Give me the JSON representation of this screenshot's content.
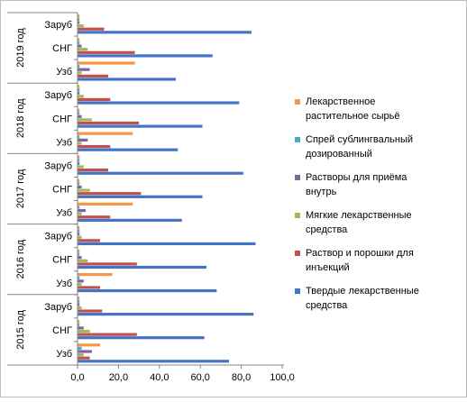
{
  "chart_data": {
    "type": "bar",
    "orientation": "horizontal",
    "groups": [
      {
        "label": "2015 год",
        "categories": [
          "Узб",
          "СНГ",
          "Заруб"
        ]
      },
      {
        "label": "2016 год",
        "categories": [
          "Узб",
          "СНГ",
          "Заруб"
        ]
      },
      {
        "label": "2017 год",
        "categories": [
          "Узб",
          "СНГ",
          "Заруб"
        ]
      },
      {
        "label": "2018 год",
        "categories": [
          "Узб",
          "СНГ",
          "Заруб"
        ]
      },
      {
        "label": "2019 год",
        "categories": [
          "Узб",
          "СНГ",
          "Заруб"
        ]
      }
    ],
    "series": [
      {
        "name": "Твердые лекарственные средства",
        "color": "#4472C4",
        "values": [
          74,
          62,
          86,
          68,
          63,
          87,
          51,
          61,
          81,
          49,
          61,
          79,
          48,
          66,
          85
        ]
      },
      {
        "name": "Раствор и порошки для инъекций",
        "color": "#C0504D",
        "values": [
          6,
          29,
          12,
          11,
          29,
          11,
          16,
          31,
          15,
          16,
          30,
          16,
          15,
          28,
          13
        ]
      },
      {
        "name": "Мягкие лекарственные средства",
        "color": "#9BBB59",
        "values": [
          3,
          6,
          2,
          2,
          5,
          2,
          2,
          6,
          3,
          2,
          7,
          3,
          2,
          5,
          3
        ]
      },
      {
        "name": "Растворы для приёма внутрь",
        "color": "#8064A2",
        "values": [
          7,
          3,
          1,
          3,
          2,
          1,
          4,
          2,
          1,
          5,
          2,
          1,
          6,
          2,
          1
        ]
      },
      {
        "name": "Спрей сублингвальный дозированный",
        "color": "#4BACC6",
        "values": [
          2,
          1,
          1,
          1,
          1,
          1,
          1,
          1,
          1,
          1,
          1,
          1,
          1,
          1,
          1
        ]
      },
      {
        "name": "Лекарственное растительное сырьё",
        "color": "#F79646",
        "values": [
          11,
          1,
          1,
          17,
          1,
          1,
          27,
          1,
          1,
          27,
          1,
          1,
          28,
          1,
          1
        ]
      }
    ],
    "xlim": [
      0,
      100
    ],
    "xticks": [
      "0,0",
      "20,0",
      "40,0",
      "60,0",
      "80,0",
      "100,0"
    ],
    "legend": {
      "position": "right",
      "order": [
        5,
        4,
        3,
        2,
        1,
        0
      ],
      "lines": [
        [
          "Лекарственное",
          "растительное сырьё"
        ],
        [
          "Спрей сублингвальный",
          "дозированный"
        ],
        [
          "Растворы для приёма",
          "внутрь"
        ],
        [
          "Мягкие лекарственные",
          "средства"
        ],
        [
          "Раствор и порошки для",
          "инъекций"
        ],
        [
          "Твердые лекарственные",
          "средства"
        ]
      ]
    },
    "grid": false
  }
}
